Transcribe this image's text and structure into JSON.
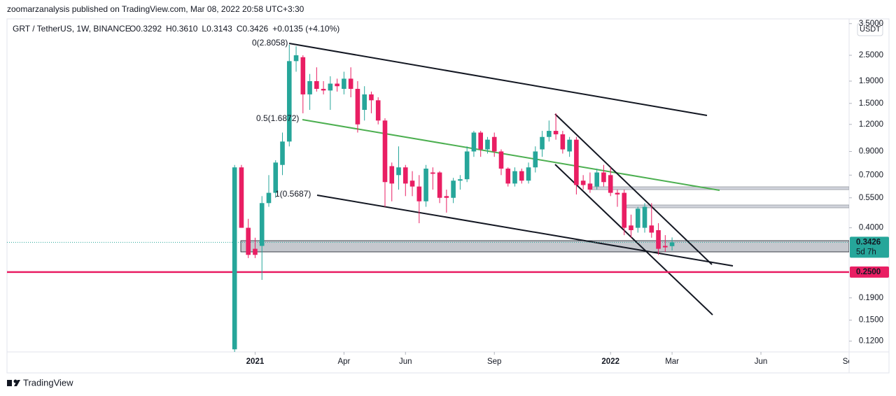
{
  "header": {
    "byline": "zoomarzanalysis published on TradingView.com, Mar 08, 2022 20:58 UTC+3:30"
  },
  "footer": {
    "brand": "TradingView"
  },
  "chart_data": {
    "type": "candlestick",
    "symbol": "GRT / TetherUS, 1W, BINANCE",
    "ohlc_legend": [
      "O0.3292",
      "H0.3610",
      "L0.3143",
      "C0.3426",
      "+0.0135 (+4.10%)"
    ],
    "currency": "USDT",
    "up_color": "#26a69a",
    "down_color": "#e91e63",
    "log_scale": true,
    "xlim": [
      -33.3,
      89.9
    ],
    "xticks": [
      {
        "value": 3,
        "label": "2021"
      },
      {
        "value": 16,
        "label": "Apr"
      },
      {
        "value": 25,
        "label": "Jun"
      },
      {
        "value": 38,
        "label": "Sep"
      },
      {
        "value": 55,
        "label": "2022"
      },
      {
        "value": 64,
        "label": "Mar"
      },
      {
        "value": 77,
        "label": "Jun"
      },
      {
        "value": 90,
        "label": "Sep"
      }
    ],
    "ylim": [
      0.107,
      3.68
    ],
    "yticks": [
      {
        "value": 3.5,
        "label": "3.5000"
      },
      {
        "value": 2.5,
        "label": "2.5000"
      },
      {
        "value": 1.9,
        "label": "1.9000"
      },
      {
        "value": 1.5,
        "label": "1.5000"
      },
      {
        "value": 1.2,
        "label": "1.2000"
      },
      {
        "value": 0.9,
        "label": "0.9000"
      },
      {
        "value": 0.7,
        "label": "0.7000"
      },
      {
        "value": 0.55,
        "label": "0.5500"
      },
      {
        "value": 0.4,
        "label": "0.4000"
      },
      {
        "value": 0.19,
        "label": "0.1900"
      },
      {
        "value": 0.15,
        "label": "0.1500"
      },
      {
        "value": 0.12,
        "label": "0.1200"
      }
    ],
    "open": [
      0.11,
      0.76,
      0.4,
      0.32,
      0.33,
      0.52,
      0.58,
      0.78,
      1.0,
      2.35,
      2.45,
      1.65,
      1.9,
      1.75,
      1.72,
      1.85,
      1.75,
      1.95,
      1.75,
      1.4,
      1.65,
      1.55,
      1.25,
      0.77,
      0.7,
      0.76,
      0.66,
      0.62,
      0.53,
      0.72,
      0.72,
      0.56,
      0.55,
      0.66,
      0.67,
      0.9,
      1.1,
      0.92,
      1.05,
      0.9,
      0.75,
      0.64,
      0.73,
      0.66,
      0.76,
      0.92,
      1.05,
      1.12,
      1.08,
      0.9,
      1.02,
      0.66,
      0.64,
      0.62,
      0.72,
      0.7,
      0.58,
      0.58,
      0.41,
      0.4,
      0.4,
      0.41,
      0.39,
      0.33,
      0.3292
    ],
    "high": [
      0.78,
      0.78,
      0.44,
      0.36,
      0.56,
      0.7,
      0.82,
      1.1,
      2.8,
      2.75,
      2.5,
      2.05,
      2.2,
      1.9,
      2.0,
      1.95,
      2.1,
      2.2,
      1.9,
      1.8,
      1.7,
      1.6,
      1.28,
      0.8,
      0.95,
      0.78,
      0.73,
      0.7,
      0.78,
      0.76,
      0.73,
      0.6,
      0.68,
      0.7,
      0.95,
      1.12,
      1.12,
      1.05,
      1.1,
      0.92,
      0.76,
      0.76,
      0.75,
      0.8,
      0.95,
      1.12,
      1.25,
      1.35,
      1.12,
      1.05,
      1.05,
      0.7,
      0.72,
      0.75,
      0.78,
      0.76,
      0.6,
      0.6,
      0.46,
      0.5,
      0.52,
      0.52,
      0.42,
      0.37,
      0.361
    ],
    "low": [
      0.1,
      0.4,
      0.29,
      0.29,
      0.23,
      0.5,
      0.55,
      0.7,
      0.95,
      2.1,
      1.35,
      1.4,
      1.7,
      1.65,
      1.4,
      1.7,
      1.65,
      1.6,
      1.1,
      1.25,
      1.35,
      1.2,
      0.5,
      0.53,
      0.6,
      0.56,
      0.56,
      0.42,
      0.5,
      0.6,
      0.52,
      0.47,
      0.52,
      0.6,
      0.65,
      0.85,
      0.85,
      0.88,
      0.85,
      0.7,
      0.62,
      0.62,
      0.64,
      0.64,
      0.72,
      0.85,
      1.0,
      1.02,
      0.88,
      0.85,
      0.57,
      0.6,
      0.58,
      0.6,
      0.62,
      0.56,
      0.5,
      0.37,
      0.36,
      0.38,
      0.38,
      0.36,
      0.3,
      0.31,
      0.3143
    ],
    "close": [
      0.76,
      0.4,
      0.3,
      0.3,
      0.52,
      0.58,
      0.8,
      1.0,
      2.35,
      2.5,
      1.65,
      1.9,
      1.75,
      1.72,
      1.85,
      1.8,
      1.95,
      1.75,
      1.2,
      1.65,
      1.55,
      1.25,
      0.65,
      0.64,
      0.76,
      0.64,
      0.62,
      0.53,
      0.75,
      0.71,
      0.55,
      0.55,
      0.66,
      0.67,
      0.9,
      1.1,
      0.92,
      1.02,
      0.9,
      0.75,
      0.64,
      0.73,
      0.66,
      0.76,
      0.9,
      1.05,
      1.12,
      1.08,
      0.92,
      1.02,
      0.63,
      0.63,
      0.6,
      0.72,
      0.65,
      0.58,
      0.57,
      0.4,
      0.39,
      0.49,
      0.5,
      0.38,
      0.32,
      0.325,
      0.3426
    ],
    "annotations": [
      {
        "text": "0(2.8058)",
        "color": "#131722"
      },
      {
        "text": "0.5(1.6872)",
        "color": "#4caf50"
      },
      {
        "text": "1(0.5687)",
        "color": "#131722"
      }
    ],
    "level": {
      "value": 0.25,
      "label": "0.2500",
      "color": "#e91e63"
    },
    "last_price": {
      "value": 0.3426,
      "label": "0.3426",
      "countdown": "5d 7h",
      "color": "#26a69a"
    }
  }
}
